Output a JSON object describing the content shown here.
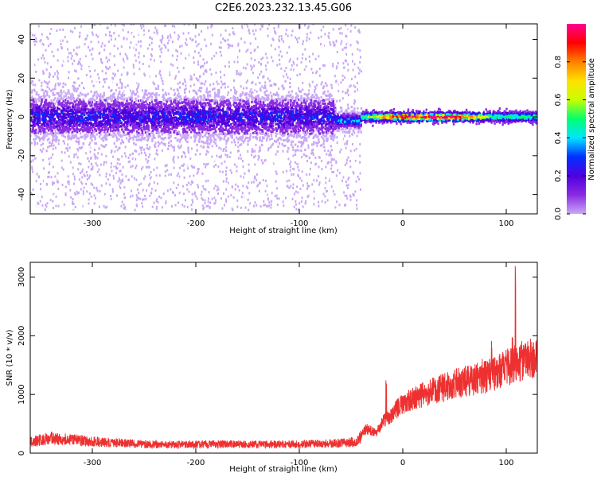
{
  "title": "C2E6.2023.232.13.45.G06",
  "chart_data": [
    {
      "type": "heatmap",
      "xlabel": "Height of straight line (km)",
      "ylabel": "Frequency (Hz)",
      "xlim": [
        -360,
        130
      ],
      "ylim": [
        -50,
        48
      ],
      "x_ticks": [
        -300,
        -200,
        -100,
        0,
        100
      ],
      "y_ticks": [
        -40,
        -20,
        0,
        20,
        40
      ],
      "grid": false,
      "colorbar": {
        "label": "Normalized spectral amplitude",
        "ticks": [
          0.0,
          0.2,
          0.4,
          0.6,
          0.8
        ],
        "range": [
          0,
          1
        ],
        "colormap": [
          "#ffffff",
          "#c9a8f5",
          "#8a2be2",
          "#5000e0",
          "#0030ff",
          "#00e5ff",
          "#00ff70",
          "#c8ff00",
          "#ffe000",
          "#ff8000",
          "#ff0000",
          "#ff0090"
        ]
      },
      "bands": [
        {
          "x": [
            -360,
            -65
          ],
          "center_hz": 0,
          "core_halfwidth_hz": 10,
          "scatter_halfwidth_hz": 48,
          "peak_amplitude": 0.25
        },
        {
          "x": [
            -65,
            -40
          ],
          "center_hz": -2,
          "core_halfwidth_hz": 4,
          "scatter_halfwidth_hz": 48,
          "peak_amplitude": 0.35
        },
        {
          "x": [
            -40,
            130
          ],
          "center_hz": 0,
          "core_halfwidth_hz": 2,
          "scatter_halfwidth_hz": 3,
          "peak_amplitude": 0.95
        }
      ]
    },
    {
      "type": "line",
      "xlabel": "Height of straight line (km)",
      "ylabel": "SNR (10 * v/v)",
      "xlim": [
        -360,
        130
      ],
      "ylim": [
        0,
        3250
      ],
      "x_ticks": [
        -300,
        -200,
        -100,
        0,
        100
      ],
      "y_ticks": [
        0,
        1000,
        2000,
        3000
      ],
      "grid": false,
      "series": [
        {
          "color": "#ee3030",
          "x": [
            -360,
            -340,
            -320,
            -300,
            -280,
            -260,
            -240,
            -220,
            -200,
            -180,
            -160,
            -140,
            -120,
            -100,
            -80,
            -60,
            -45,
            -40,
            -35,
            -30,
            -25,
            -20,
            -15,
            -10,
            -5,
            0,
            10,
            20,
            30,
            40,
            50,
            60,
            70,
            80,
            90,
            100,
            110,
            120,
            130
          ],
          "values": [
            200,
            250,
            230,
            200,
            180,
            160,
            150,
            145,
            150,
            155,
            150,
            150,
            150,
            150,
            160,
            170,
            190,
            300,
            420,
            380,
            350,
            520,
            600,
            680,
            760,
            850,
            930,
            1000,
            1060,
            1120,
            1180,
            1220,
            1250,
            1300,
            1350,
            1450,
            1550,
            1600,
            1650
          ]
        }
      ],
      "annotations_spikes": [
        {
          "x": -16,
          "value": 1250
        },
        {
          "x": 77,
          "value": 1700
        },
        {
          "x": 86,
          "value": 2100
        },
        {
          "x": 106,
          "value": 2200
        },
        {
          "x": 109,
          "value": 3300
        },
        {
          "x": 118,
          "value": 1900
        }
      ]
    }
  ]
}
